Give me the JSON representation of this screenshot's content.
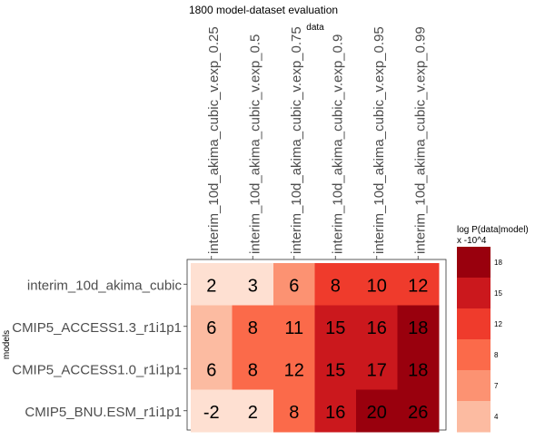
{
  "chart_data": {
    "type": "heatmap",
    "title": "1800 model-dataset evaluation",
    "xlabel": "data",
    "ylabel": "models",
    "x_categories": [
      "interim_10d_akima_cubic_v.exp_0.25",
      "interim_10d_akima_cubic_v.exp_0.5",
      "interim_10d_akima_cubic_v.exp_0.75",
      "interim_10d_akima_cubic_v.exp_0.9",
      "interim_10d_akima_cubic_v.exp_0.95",
      "interim_10d_akima_cubic_v.exp_0.99"
    ],
    "y_categories": [
      "interim_10d_akima_cubic",
      "CMIP5_ACCESS1.3_r1i1p1",
      "CMIP5_ACCESS1.0_r1i1p1",
      "CMIP5_BNU.ESM_r1i1p1"
    ],
    "values": [
      [
        2,
        3,
        6,
        8,
        10,
        12
      ],
      [
        6,
        8,
        11,
        15,
        16,
        18
      ],
      [
        6,
        8,
        12,
        15,
        17,
        18
      ],
      [
        -2,
        2,
        8,
        16,
        20,
        26
      ]
    ],
    "legend": {
      "title_line1": "log P(data|model)",
      "title_line2": "x -10^4",
      "placement": "right",
      "bins": [
        {
          "label": "18",
          "color": "#99000d"
        },
        {
          "label": "15",
          "color": "#cb181d"
        },
        {
          "label": "12",
          "color": "#ef3b2c"
        },
        {
          "label": "8",
          "color": "#fb6a4a"
        },
        {
          "label": "7",
          "color": "#fc9272"
        },
        {
          "label": "4",
          "color": "#fcbba1"
        }
      ]
    },
    "cell_colors": [
      [
        "#fee0d2",
        "#fee0d2",
        "#fc9272",
        "#ef3b2c",
        "#ef3b2c",
        "#ef3b2c"
      ],
      [
        "#fcbba1",
        "#fb6a4a",
        "#fb6a4a",
        "#cb181d",
        "#cb181d",
        "#99000d"
      ],
      [
        "#fcbba1",
        "#fb6a4a",
        "#fb6a4a",
        "#cb181d",
        "#cb181d",
        "#99000d"
      ],
      [
        "#fee0d2",
        "#fee0d2",
        "#fb6a4a",
        "#cb181d",
        "#99000d",
        "#99000d"
      ]
    ]
  }
}
